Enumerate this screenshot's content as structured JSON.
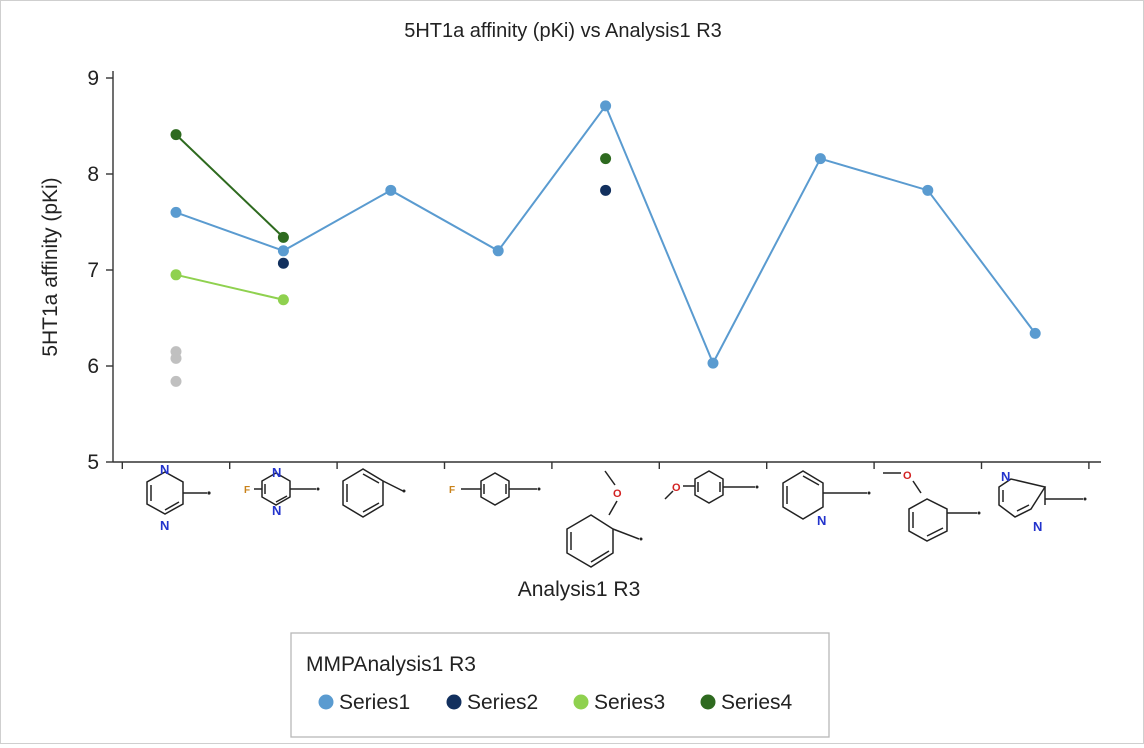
{
  "chart_data": {
    "type": "line",
    "title": "5HT1a affinity (pKi) vs Analysis1 R3",
    "xlabel": "Analysis1 R3",
    "ylabel": "5HT1a affinity (pKi)",
    "ylim": [
      5,
      9
    ],
    "yticks": [
      "5",
      "6",
      "7",
      "8",
      "9"
    ],
    "categories": [
      "2-pyrimidinyl",
      "5-fluoro-2-pyrimidinyl",
      "phenyl",
      "4-fluorophenyl",
      "2-methoxyphenyl",
      "4-methoxyphenyl",
      "2-pyridinyl",
      "3-methoxyphenyl",
      "2-pyrazinyl"
    ],
    "series": [
      {
        "name": "Series1",
        "color": "#5a9bd0",
        "line": true,
        "points": [
          [
            0,
            7.6
          ],
          [
            1,
            7.2
          ],
          [
            2,
            7.83
          ],
          [
            3,
            7.2
          ],
          [
            4,
            8.71
          ],
          [
            5,
            6.03
          ],
          [
            6,
            8.16
          ],
          [
            7,
            7.83
          ],
          [
            8,
            6.34
          ]
        ]
      },
      {
        "name": "Series2",
        "color": "#12305e",
        "line": false,
        "points": [
          [
            1,
            7.07
          ],
          [
            4,
            7.83
          ]
        ]
      },
      {
        "name": "Series3",
        "color": "#8fd14f",
        "line": true,
        "points": [
          [
            0,
            6.95
          ],
          [
            1,
            6.69
          ]
        ]
      },
      {
        "name": "Series4",
        "color": "#2e6a1f",
        "line": true,
        "points": [
          [
            0,
            8.41
          ],
          [
            1,
            7.34
          ],
          [
            4,
            8.16
          ]
        ],
        "connect": [
          0,
          1
        ]
      },
      {
        "name": "",
        "color": "#c0c0c0",
        "line": false,
        "in_legend": false,
        "points": [
          [
            0,
            6.15
          ],
          [
            0,
            6.08
          ],
          [
            0,
            5.84
          ]
        ]
      }
    ],
    "legend": {
      "title": "MMPAnalysis1 R3",
      "placement": "bottom-center",
      "entries": [
        "Series1",
        "Series2",
        "Series3",
        "Series4"
      ]
    },
    "grid": false
  }
}
